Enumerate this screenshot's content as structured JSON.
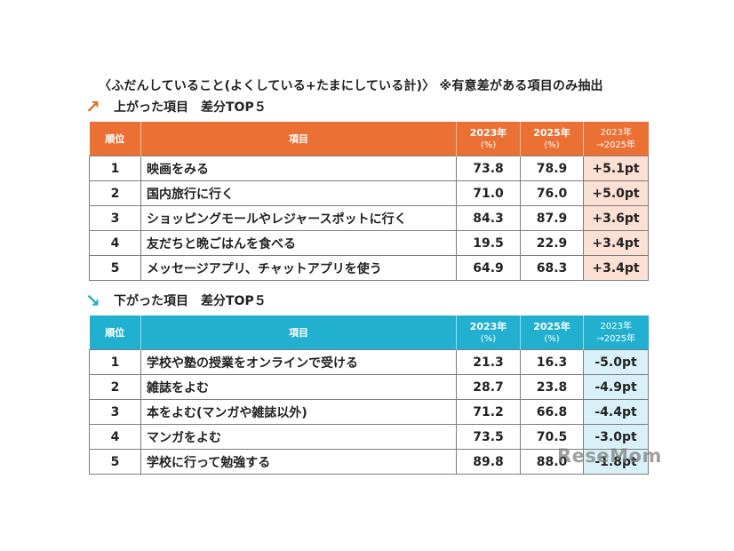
{
  "title": "〈ふだんしていること(よくしている+たまにしている計)〉 ※有意差がある項目のみ抽出",
  "header": {
    "rank": "順位",
    "item": "項目",
    "y2023": "2023年",
    "y2023_unit": "(%)",
    "y2025": "2025年",
    "y2025_unit": "(%)",
    "diff_a": "2023年",
    "diff_b": "→2025年"
  },
  "up": {
    "arrow": "↗",
    "heading": "上がった項目　差分TOP５",
    "rows": [
      {
        "rank": "1",
        "item": "映画をみる",
        "v2023": "73.8",
        "v2025": "78.9",
        "diff": "+5.1pt"
      },
      {
        "rank": "2",
        "item": "国内旅行に行く",
        "v2023": "71.0",
        "v2025": "76.0",
        "diff": "+5.0pt"
      },
      {
        "rank": "3",
        "item": "ショッピングモールやレジャースポットに行く",
        "v2023": "84.3",
        "v2025": "87.9",
        "diff": "+3.6pt"
      },
      {
        "rank": "4",
        "item": "友だちと晩ごはんを食べる",
        "v2023": "19.5",
        "v2025": "22.9",
        "diff": "+3.4pt"
      },
      {
        "rank": "5",
        "item": "メッセージアプリ、チャットアプリを使う",
        "v2023": "64.9",
        "v2025": "68.3",
        "diff": "+3.4pt"
      }
    ]
  },
  "down": {
    "arrow": "↘",
    "heading": "下がった項目　差分TOP５",
    "rows": [
      {
        "rank": "1",
        "item": "学校や塾の授業をオンラインで受ける",
        "v2023": "21.3",
        "v2025": "16.3",
        "diff": "-5.0pt"
      },
      {
        "rank": "2",
        "item": "雑誌をよむ",
        "v2023": "28.7",
        "v2025": "23.8",
        "diff": "-4.9pt"
      },
      {
        "rank": "3",
        "item": "本をよむ(マンガや雑誌以外)",
        "v2023": "71.2",
        "v2025": "66.8",
        "diff": "-4.4pt"
      },
      {
        "rank": "4",
        "item": "マンガをよむ",
        "v2023": "73.5",
        "v2025": "70.5",
        "diff": "-3.0pt"
      },
      {
        "rank": "5",
        "item": "学校に行って勉強する",
        "v2023": "89.8",
        "v2025": "88.0",
        "diff": "-1.8pt"
      }
    ]
  },
  "watermark": "ReseMom",
  "colors": {
    "up_header": "#ea7034",
    "down_header": "#21b0d0",
    "up_diff_bg": "#fde0d4",
    "down_diff_bg": "#d8f1f8"
  }
}
